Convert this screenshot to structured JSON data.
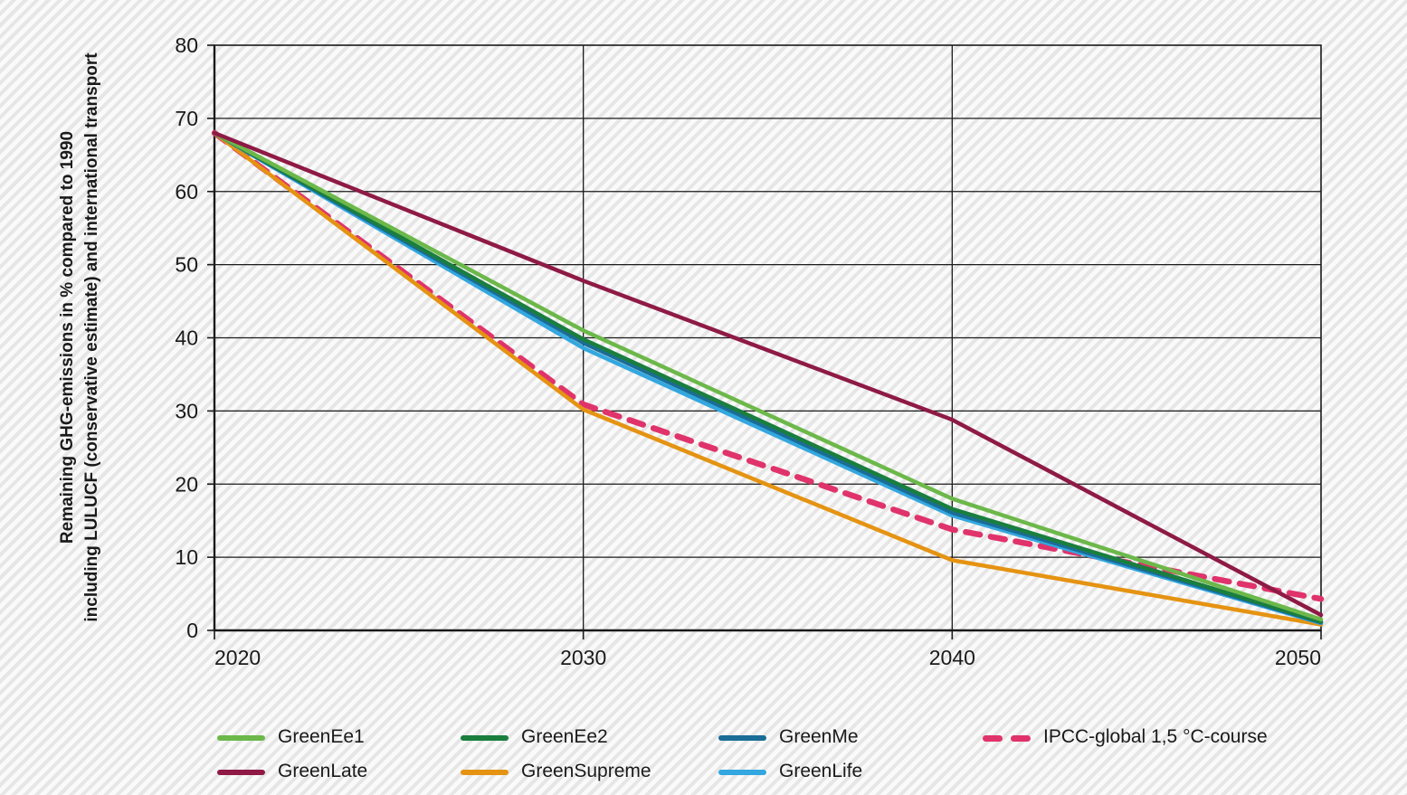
{
  "figure": {
    "background_stripe_light": "#fafafa",
    "background_stripe_dark": "#e6e6e6",
    "grid_color": "#1a1a1a",
    "text_color": "#1a1a1a"
  },
  "chart_data": {
    "type": "line",
    "title": "",
    "ylabel": [
      "Remaining GHG-emissions in % compared to 1990",
      "including LULUCF (conservative estimate) and international transport"
    ],
    "xlabel": "",
    "x_ticks": [
      "2020",
      "2030",
      "2040",
      "2050"
    ],
    "y_ticks": [
      0,
      10,
      20,
      30,
      40,
      50,
      60,
      70,
      80
    ],
    "xlim": [
      2020,
      2050
    ],
    "ylim": [
      0,
      80
    ],
    "grid": true,
    "legend_position": "bottom",
    "x": [
      2020,
      2030,
      2040,
      2050
    ],
    "series": [
      {
        "name": "IPCC-global 1,5 °C-course",
        "color": "#E0336B",
        "style": "dashed",
        "values": [
          68,
          30.9,
          13.8,
          4.3
        ]
      },
      {
        "name": "GreenSupreme",
        "color": "#E59312",
        "style": "solid",
        "values": [
          68,
          30.2,
          9.6,
          0.8
        ]
      },
      {
        "name": "GreenLife",
        "color": "#33A7DF",
        "style": "solid",
        "values": [
          68,
          38.6,
          15.7,
          1.0
        ]
      },
      {
        "name": "GreenMe",
        "color": "#1A6D96",
        "style": "solid",
        "values": [
          68,
          39.3,
          16.1,
          1.1
        ]
      },
      {
        "name": "GreenEe2",
        "color": "#1A7E3E",
        "style": "solid",
        "values": [
          68,
          39.8,
          16.6,
          1.2
        ]
      },
      {
        "name": "GreenEe1",
        "color": "#6CB84A",
        "style": "solid",
        "values": [
          68,
          41.0,
          18.0,
          1.5
        ]
      },
      {
        "name": "GreenLate",
        "color": "#8E1A45",
        "style": "solid",
        "values": [
          68,
          47.8,
          28.8,
          2.1
        ]
      }
    ],
    "legend_rows": [
      [
        "GreenEe1",
        "GreenEe2",
        "GreenMe",
        "IPCC-global 1,5 °C-course"
      ],
      [
        "GreenLate",
        "GreenSupreme",
        "GreenLife"
      ]
    ]
  }
}
